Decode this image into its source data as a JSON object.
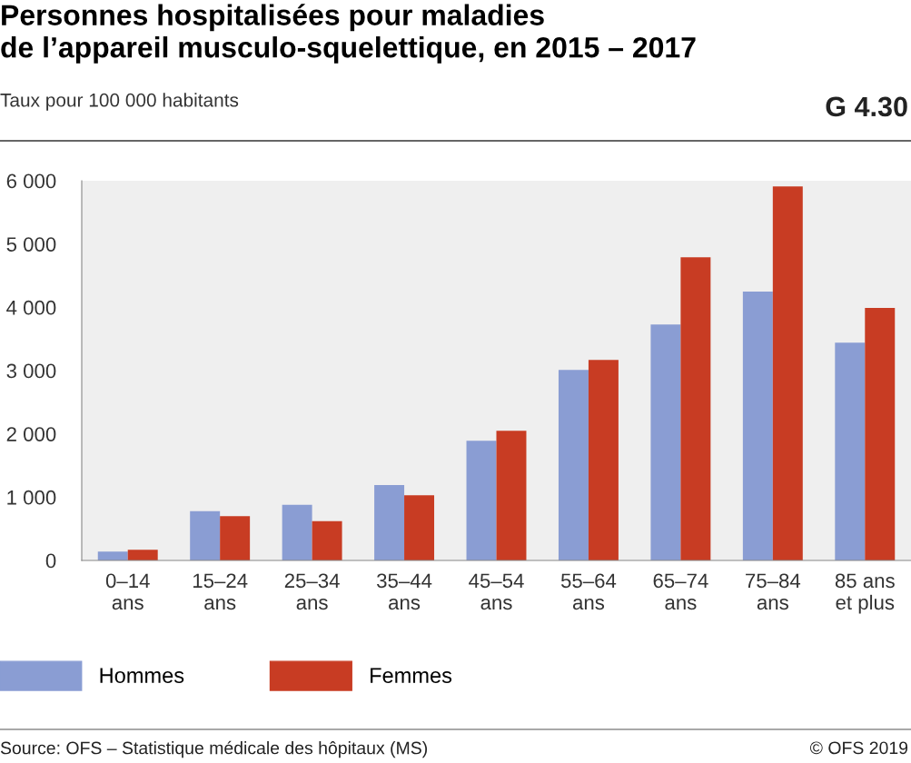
{
  "chart_data": {
    "type": "bar",
    "title": "Personnes hospitalisées pour maladies\nde l’appareil musculo-squelettique, en 2015 – 2017",
    "subtitle": "Taux pour 100 000 habitants",
    "categories": [
      "0–14\nans",
      "15–24\nans",
      "25–34\nans",
      "35–44\nans",
      "45–54\nans",
      "55–64\nans",
      "65–74\nans",
      "75–84\nans",
      "85 ans\net plus"
    ],
    "series": [
      {
        "name": "Hommes",
        "color": "#8a9dd3",
        "values": [
          140,
          780,
          880,
          1190,
          1890,
          3010,
          3730,
          4250,
          3440
        ]
      },
      {
        "name": "Femmes",
        "color": "#c83c23",
        "values": [
          170,
          700,
          620,
          1030,
          2050,
          3170,
          4790,
          5910,
          3990
        ]
      }
    ],
    "ylim": [
      0,
      6000
    ],
    "yticks": [
      0,
      {
        "value": 1000,
        "label": "1 000"
      },
      {
        "value": 2000,
        "label": "2 000"
      },
      {
        "value": 3000,
        "label": "3 000"
      },
      {
        "value": 4000,
        "label": "4 000"
      },
      {
        "value": 5000,
        "label": "5 000"
      },
      {
        "value": 6000,
        "label": "6 000"
      }
    ],
    "grid": false,
    "legend": "bottom left",
    "annotations": [
      "G 4.30",
      "Source: OFS – Statistique médicale des hôpitaux (MS)",
      "© OFS 2019"
    ]
  }
}
